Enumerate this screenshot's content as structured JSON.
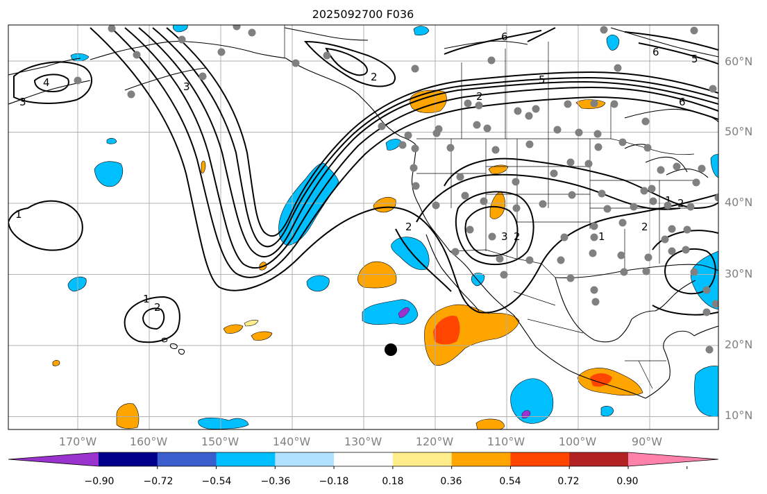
{
  "title": "2025092700 F036",
  "map": {
    "lon_labels": [
      "170°W",
      "160°W",
      "150°W",
      "140°W",
      "130°W",
      "120°W",
      "110°W",
      "100°W",
      "90°W"
    ],
    "lat_labels": [
      "60°N",
      "50°N",
      "40°N",
      "30°N",
      "20°N",
      "10°N"
    ],
    "contour_labels": [
      "6",
      "5",
      "3",
      "4",
      "3",
      "2",
      "2",
      "1",
      "1",
      "2",
      "2",
      "3",
      "2",
      "1",
      "2",
      "1",
      "2",
      "6",
      "5",
      "6"
    ],
    "colors": {
      "land_outline": "#000000",
      "gridline": "#b0b0b0",
      "station_dot": "#808080",
      "marker_dot": "#000000"
    }
  },
  "colorbar": {
    "levels": [
      -0.9,
      -0.72,
      -0.54,
      -0.36,
      -0.18,
      0.18,
      0.36,
      0.54,
      0.72,
      0.9
    ],
    "tick_labels": [
      "−0.90",
      "−0.72",
      "−0.54",
      "−0.36",
      "−0.18",
      "0.18",
      "0.36",
      "0.54",
      "0.72",
      "0.90"
    ],
    "colors": [
      "#9a32cd",
      "#00008b",
      "#3a5fcd",
      "#00bfff",
      "#b0e2ff",
      "#ffffff",
      "#ffec8b",
      "#ffa500",
      "#ff4500",
      "#b22222",
      "#ff82ab"
    ],
    "extend": "both"
  }
}
